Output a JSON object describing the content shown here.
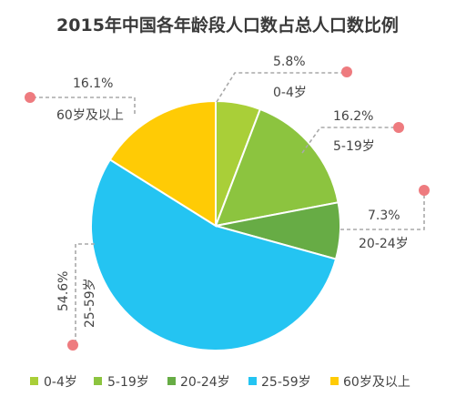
{
  "chart_data": {
    "type": "pie",
    "title": "2015年中国各年龄段人口数占总人口数比例",
    "slices": [
      {
        "label": "0-4岁",
        "value": 5.8,
        "pct_label": "5.8%",
        "color": "#a9cf38"
      },
      {
        "label": "5-19岁",
        "value": 16.2,
        "pct_label": "16.2%",
        "color": "#8cc43f"
      },
      {
        "label": "20-24岁",
        "value": 7.3,
        "pct_label": "7.3%",
        "color": "#67ac45"
      },
      {
        "label": "25-59岁",
        "value": 54.6,
        "pct_label": "54.6%",
        "color": "#24c4f2"
      },
      {
        "label": "60岁及以上",
        "value": 16.1,
        "pct_label": "16.1%",
        "color": "#ffcb05"
      }
    ],
    "legend_position": "bottom",
    "marker_color": "#ee7b7f"
  }
}
